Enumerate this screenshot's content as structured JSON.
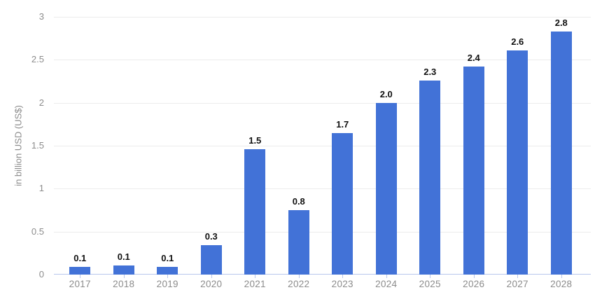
{
  "colors": {
    "bar": "#4272d7",
    "gridline": "#ececec",
    "axis_line": "#b9c7ec",
    "tick_mark": "#b9c7ec",
    "axis_text": "#8c8c8c",
    "value_label": "#101010",
    "background": "#ffffff"
  },
  "chart_data": {
    "type": "bar",
    "title": "",
    "categories": [
      "2017",
      "2018",
      "2019",
      "2020",
      "2021",
      "2022",
      "2023",
      "2024",
      "2025",
      "2026",
      "2027",
      "2028"
    ],
    "values": [
      0.09,
      0.11,
      0.09,
      0.34,
      1.46,
      0.75,
      1.65,
      2.0,
      2.26,
      2.42,
      2.61,
      2.83
    ],
    "value_labels": [
      "0.1",
      "0.1",
      "0.1",
      "0.3",
      "1.5",
      "0.8",
      "1.7",
      "2.0",
      "2.3",
      "2.4",
      "2.6",
      "2.8"
    ],
    "xlabel": "",
    "ylabel": "in billion USD (US$)",
    "ylim": [
      0,
      3
    ],
    "y_ticks": [
      0,
      0.5,
      1,
      1.5,
      2,
      2.5,
      3
    ],
    "y_tick_labels": [
      "0",
      "0.5",
      "1",
      "1.5",
      "2",
      "2.5",
      "3"
    ],
    "grid": true,
    "legend": false,
    "legend_position": "none"
  }
}
